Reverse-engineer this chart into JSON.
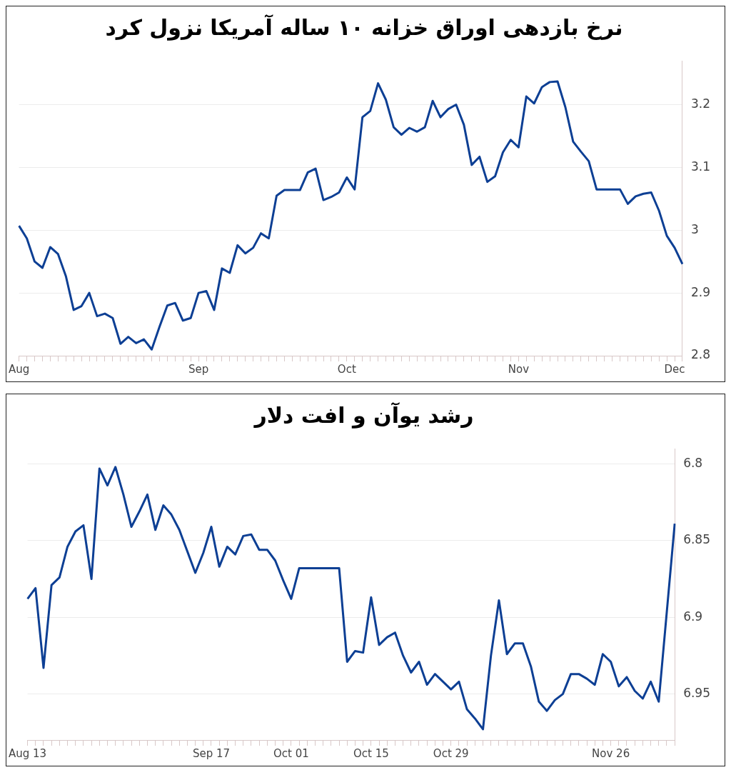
{
  "chart_data": [
    {
      "type": "line",
      "title": "نرخ بازدهی اوراق خزانه ۱۰ ساله آمریکا نزول کرد",
      "categories": [
        "Aug",
        null,
        null,
        null,
        null,
        null,
        null,
        null,
        null,
        null,
        null,
        null,
        null,
        null,
        null,
        null,
        null,
        null,
        null,
        null,
        null,
        null,
        null,
        "Sep",
        null,
        null,
        null,
        null,
        null,
        null,
        null,
        null,
        null,
        null,
        null,
        null,
        null,
        null,
        null,
        null,
        null,
        null,
        "Oct",
        null,
        null,
        null,
        null,
        null,
        null,
        null,
        null,
        null,
        null,
        null,
        null,
        null,
        null,
        null,
        null,
        null,
        null,
        null,
        null,
        null,
        "Nov",
        null,
        null,
        null,
        null,
        null,
        null,
        null,
        null,
        null,
        null,
        null,
        null,
        null,
        null,
        null,
        null,
        null,
        null,
        null,
        "Dec",
        null
      ],
      "series": [
        {
          "color": "#0d3f94",
          "values": [
            3.007,
            2.987,
            2.95,
            2.94,
            2.973,
            2.962,
            2.927,
            2.873,
            2.879,
            2.9,
            2.863,
            2.867,
            2.86,
            2.819,
            2.83,
            2.82,
            2.826,
            2.81,
            2.846,
            2.88,
            2.884,
            2.856,
            2.86,
            2.9,
            2.903,
            2.873,
            2.939,
            2.932,
            2.976,
            2.963,
            2.972,
            2.995,
            2.987,
            3.055,
            3.064,
            3.064,
            3.064,
            3.092,
            3.098,
            3.048,
            3.053,
            3.06,
            3.084,
            3.065,
            3.18,
            3.19,
            3.234,
            3.208,
            3.164,
            3.152,
            3.163,
            3.157,
            3.164,
            3.206,
            3.18,
            3.193,
            3.2,
            3.168,
            3.104,
            3.117,
            3.077,
            3.086,
            3.124,
            3.144,
            3.132,
            3.213,
            3.202,
            3.228,
            3.236,
            3.237,
            3.196,
            3.141,
            3.125,
            3.11,
            3.065,
            3.065,
            3.065,
            3.065,
            3.042,
            3.054,
            3.058,
            3.06,
            3.031,
            2.991,
            2.972,
            2.946
          ]
        }
      ],
      "ylim": [
        2.8,
        3.27
      ],
      "yticks": [
        2.8,
        2.9,
        3,
        3.1,
        3.2
      ],
      "grid": "y",
      "legend": false,
      "marker": "none",
      "line_style": "solid"
    },
    {
      "type": "line",
      "title": "رشد یوآن و افت دلار",
      "categories": [
        "Aug 13",
        null,
        null,
        null,
        null,
        null,
        null,
        null,
        null,
        null,
        null,
        null,
        null,
        null,
        null,
        null,
        null,
        null,
        null,
        null,
        null,
        null,
        null,
        "Sep 17",
        null,
        null,
        null,
        null,
        null,
        null,
        null,
        null,
        null,
        "Oct 01",
        null,
        null,
        null,
        null,
        null,
        null,
        null,
        null,
        null,
        "Oct 15",
        null,
        null,
        null,
        null,
        null,
        null,
        null,
        null,
        null,
        "Oct 29",
        null,
        null,
        null,
        null,
        null,
        null,
        null,
        null,
        null,
        null,
        null,
        null,
        null,
        null,
        null,
        null,
        null,
        null,
        null,
        "Nov 26",
        null,
        null,
        null,
        null,
        null,
        null,
        null,
        null
      ],
      "series": [
        {
          "color": "#0d3f94",
          "values": [
            6.888,
            6.881,
            6.933,
            6.879,
            6.874,
            6.854,
            6.844,
            6.84,
            6.875,
            6.803,
            6.814,
            6.802,
            6.82,
            6.841,
            6.831,
            6.82,
            6.843,
            6.827,
            6.833,
            6.843,
            6.857,
            6.871,
            6.858,
            6.841,
            6.867,
            6.854,
            6.859,
            6.847,
            6.846,
            6.856,
            6.856,
            6.863,
            6.876,
            6.888,
            6.868,
            6.868,
            6.868,
            6.868,
            6.868,
            6.868,
            6.929,
            6.922,
            6.923,
            6.887,
            6.918,
            6.913,
            6.91,
            6.925,
            6.936,
            6.929,
            6.944,
            6.937,
            6.942,
            6.947,
            6.942,
            6.96,
            6.966,
            6.973,
            6.925,
            6.889,
            6.924,
            6.917,
            6.917,
            6.932,
            6.955,
            6.961,
            6.954,
            6.95,
            6.937,
            6.937,
            6.94,
            6.944,
            6.924,
            6.929,
            6.945,
            6.939,
            6.948,
            6.953,
            6.942,
            6.955,
            null,
            6.839
          ]
        }
      ],
      "ylim": [
        6.98,
        6.79
      ],
      "yticks": [
        6.8,
        6.85,
        6.9,
        6.95
      ],
      "grid": "y",
      "legend": false,
      "marker": "none",
      "line_style": "solid"
    }
  ]
}
